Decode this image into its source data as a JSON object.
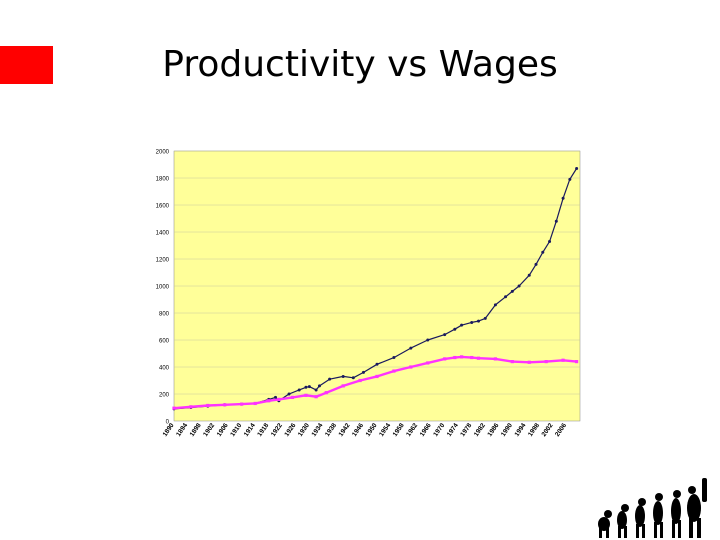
{
  "slide": {
    "title": "Productivity vs Wages"
  },
  "colors": {
    "accent_box": "#ff0000",
    "plot_background": "#ffff99",
    "productivity_series": "#1a1a5e",
    "wages_series": "#ff33ff"
  },
  "chart_data": {
    "type": "line",
    "title": "",
    "xlabel": "",
    "ylabel": "",
    "ylim": [
      0,
      2000
    ],
    "yticks": [
      "2000",
      "1800",
      "1600",
      "1400",
      "1200",
      "1000",
      "800",
      "600",
      "400",
      "200",
      "0"
    ],
    "xticks": [
      "1890",
      "1894",
      "1898",
      "1902",
      "1906",
      "1910",
      "1914",
      "1918",
      "1922",
      "1926",
      "1930",
      "1934",
      "1938",
      "1942",
      "1946",
      "1950",
      "1954",
      "1958",
      "1962",
      "1966",
      "1970",
      "1974",
      "1978",
      "1982",
      "1986",
      "1990",
      "1994",
      "1998",
      "2002",
      "2006"
    ],
    "grid": true,
    "legend": "none",
    "series": [
      {
        "key": "productivity",
        "color": "#1a1a5e",
        "marker": "point",
        "x": [
          1890,
          1895,
          1900,
          1905,
          1910,
          1914,
          1918,
          1920,
          1921,
          1924,
          1927,
          1929,
          1930,
          1932,
          1933,
          1936,
          1940,
          1943,
          1946,
          1950,
          1955,
          1960,
          1965,
          1970,
          1973,
          1975,
          1978,
          1980,
          1982,
          1985,
          1988,
          1990,
          1992,
          1995,
          1997,
          1999,
          2001,
          2003,
          2005,
          2007,
          2009
        ],
        "y": [
          90,
          100,
          110,
          120,
          125,
          130,
          160,
          175,
          150,
          200,
          230,
          250,
          255,
          230,
          260,
          310,
          330,
          320,
          360,
          420,
          470,
          540,
          600,
          640,
          680,
          710,
          730,
          740,
          760,
          860,
          920,
          960,
          1000,
          1080,
          1160,
          1250,
          1330,
          1480,
          1650,
          1790,
          1870
        ]
      },
      {
        "key": "wages",
        "color": "#ff33ff",
        "marker": "square",
        "x": [
          1890,
          1895,
          1900,
          1905,
          1910,
          1914,
          1918,
          1921,
          1925,
          1929,
          1932,
          1935,
          1940,
          1945,
          1950,
          1955,
          1960,
          1965,
          1970,
          1973,
          1975,
          1978,
          1980,
          1985,
          1990,
          1995,
          2000,
          2005,
          2009
        ],
        "y": [
          95,
          105,
          115,
          120,
          125,
          130,
          150,
          160,
          175,
          190,
          180,
          210,
          260,
          300,
          330,
          370,
          400,
          430,
          460,
          470,
          475,
          470,
          465,
          460,
          440,
          435,
          440,
          450,
          440
        ]
      }
    ]
  },
  "decor": {
    "evolution_icon": "human-evolution-silhouettes-icon"
  }
}
